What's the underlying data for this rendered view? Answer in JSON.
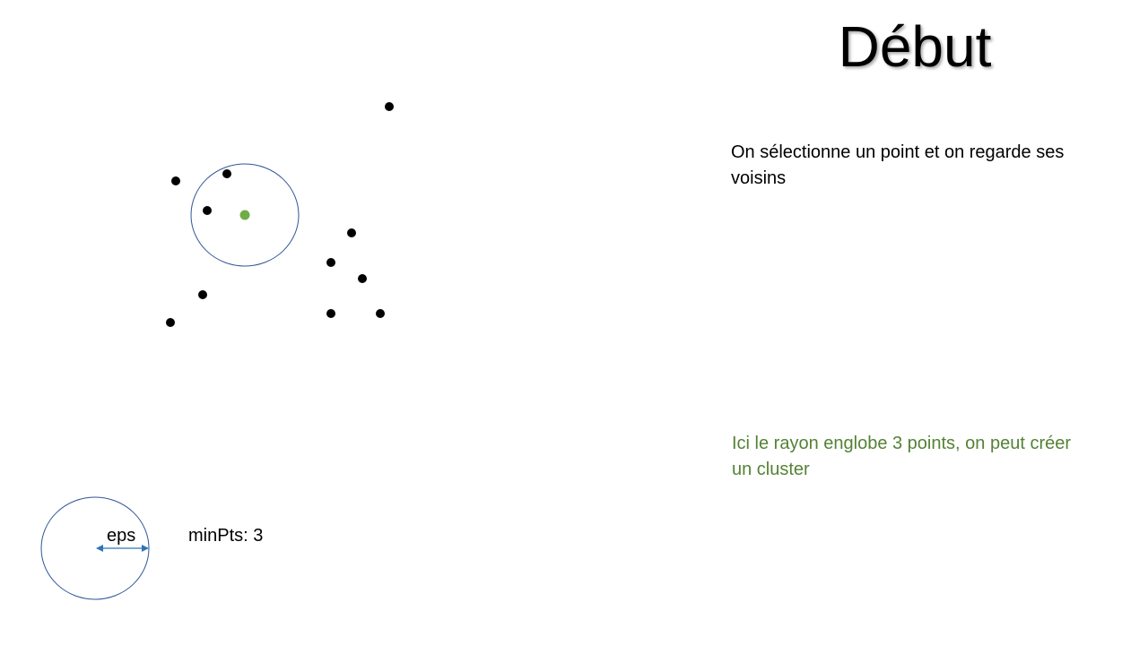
{
  "slide": {
    "title": "Début",
    "description": "On sélectionne un point et on regarde ses voisins",
    "conclusion": "Ici le rayon englobe 3 points, on peut créer un cluster"
  },
  "legend": {
    "eps_label": "eps",
    "minpts_label": "minPts: 3"
  },
  "colors": {
    "point": "#000000",
    "selected_point": "#70ad47",
    "circle_stroke": "#2f5597",
    "arrow": "#2e75b6",
    "conclusion_text": "#548235"
  }
}
